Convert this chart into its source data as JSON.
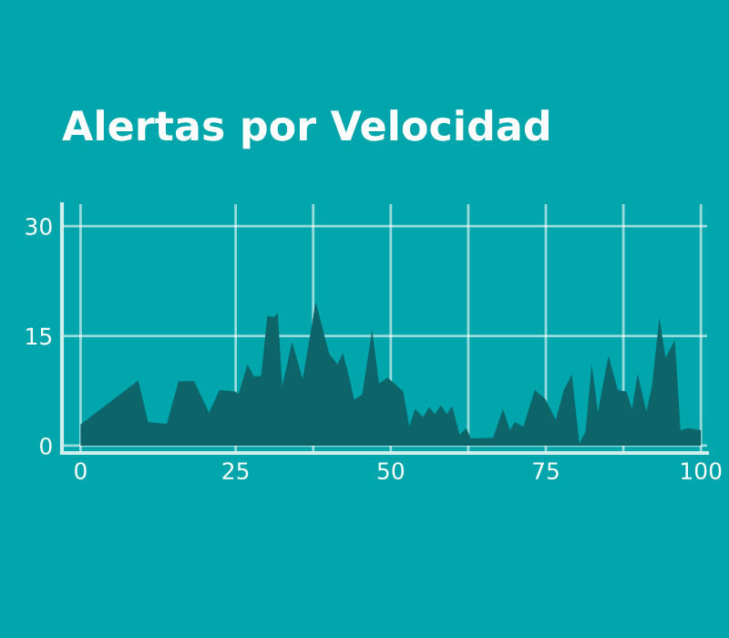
{
  "chart_data": {
    "type": "area",
    "title": "Alertas por Velocidad",
    "x": [
      0,
      9.3,
      10.9,
      13.9,
      15.8,
      18.3,
      20.7,
      22.4,
      24.9,
      25.5,
      26.9,
      27.9,
      29.1,
      30.1,
      31.2,
      31.8,
      32.5,
      34.1,
      35.8,
      37.9,
      40.1,
      41.4,
      42.3,
      43.2,
      44.1,
      45.4,
      47,
      48.1,
      49.5,
      52,
      53,
      53.9,
      55.2,
      56.2,
      57.1,
      58.1,
      59,
      59.9,
      61.1,
      62.2,
      62.9,
      66.5,
      68.1,
      69.2,
      70,
      71.4,
      73.2,
      74.9,
      76.6,
      77.9,
      79.2,
      80.4,
      81.4,
      82.4,
      83.4,
      85.1,
      86.6,
      88,
      88.9,
      89.8,
      91.2,
      92.1,
      93.3,
      94.3,
      95.8,
      96.7,
      97.9,
      100
    ],
    "series": [
      {
        "color": "#0d6569",
        "values": [
          2.9,
          8.9,
          3.2,
          3,
          8.8,
          8.8,
          4.5,
          7.6,
          7.4,
          7.1,
          11.1,
          9.5,
          9.5,
          17.7,
          17.6,
          18.1,
          8.1,
          14.2,
          9.1,
          19.6,
          12.5,
          11.1,
          12.6,
          9.7,
          6.3,
          7,
          15.8,
          8.5,
          9.3,
          7.4,
          2.6,
          5,
          3.9,
          5.3,
          4.3,
          5.5,
          4.3,
          5.4,
          1.5,
          2.4,
          1,
          1.1,
          5,
          2.1,
          3.2,
          2.6,
          7.6,
          6.4,
          3.5,
          7.6,
          9.7,
          0.3,
          1.9,
          11.1,
          4.6,
          12.3,
          7.6,
          7.4,
          5,
          9.8,
          4.7,
          8.1,
          17.5,
          12,
          14.4,
          2.1,
          2.4,
          2.1
        ]
      }
    ],
    "xlim": [
      -3,
      101
    ],
    "ylim": [
      -1,
      33
    ],
    "xticks": [
      0,
      25,
      {
        "value": 37.5,
        "label": null
      },
      50,
      {
        "value": 62.5,
        "label": null
      },
      75,
      {
        "value": 87.5,
        "label": null
      },
      100
    ],
    "yticks": [
      0,
      15,
      30
    ],
    "grid": true
  }
}
